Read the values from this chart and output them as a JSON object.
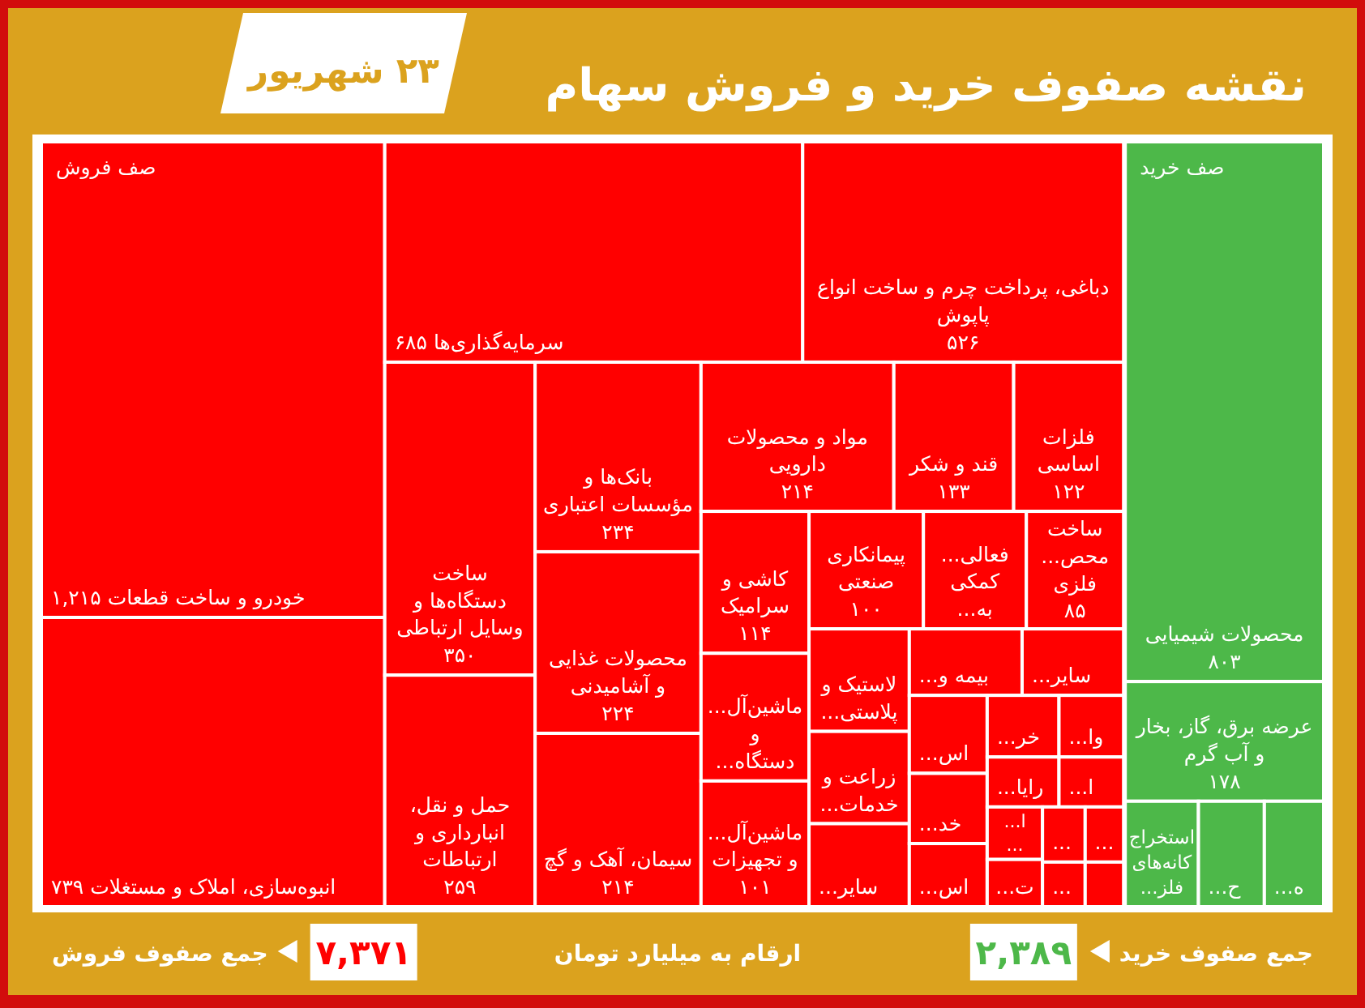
{
  "chart_data": [
    {
      "type": "other",
      "title": "نقشه صفوف خرید و فروش سهام",
      "subtitle": "۲۳ شهریور",
      "categories": [
        "خودرو و ساخت قطعات",
        "انبوه‌سازی، املاک و مستغلات",
        "سرمایه‌گذاری‌ها",
        "دباغی، پرداخت چرم و ساخت انواع پاپوش",
        "ساخت دستگاه‌ها و وسایل ارتباطی",
        "حمل و نقل، انبارداری و ارتباطات",
        "بانک‌ها و مؤسسات اعتباری",
        "محصولات غذایی و آشامیدنی",
        "سیمان، آهک و گچ",
        "مواد و محصولات دارویی",
        "قند و شکر",
        "فلزات اساسی",
        "کاشی و سرامیک",
        "ماشین‌آل... و دستگاه...",
        "ماشین‌آل... و تجهیزات",
        "پیمانکاری صنعتی",
        "فعالی... کمکی به...",
        "ساخت محص... فلزی",
        "لاستیک و پلاستی...",
        "زراعت و خدمات...",
        "سایر...",
        "بیمه و...",
        "سایر...",
        "اس...",
        "خد...",
        "اس...",
        "خر...",
        "وا...",
        "رایا...",
        "ا...",
        "ا... ...",
        "ت...",
        "...",
        "...",
        "...",
        null
      ],
      "series": [
        {
          "name": "صف فروش",
          "color": "#ff0000",
          "values": [
            1215,
            739,
            685,
            526,
            350,
            259,
            234,
            224,
            214,
            214,
            133,
            122,
            114,
            null,
            101,
            100,
            null,
            85,
            null,
            null,
            null,
            null,
            null,
            null,
            null,
            null,
            null,
            null,
            null,
            null,
            null,
            null,
            null,
            null,
            null,
            null
          ],
          "value_labels": [
            "۱,۲۱۵",
            "۷۳۹",
            "۶۸۵",
            "۵۲۶",
            "۳۵۰",
            "۲۵۹",
            "۲۳۴",
            "۲۲۴",
            "۲۱۴",
            "۲۱۴",
            "۱۳۳",
            "۱۲۲",
            "۱۱۴",
            null,
            "۱۰۱",
            "۱۰۰",
            null,
            "۸۵",
            null,
            null,
            null,
            null,
            null,
            null,
            null,
            null,
            null,
            null,
            null,
            null,
            null,
            null,
            null,
            null,
            null,
            null
          ]
        }
      ],
      "annotations": [
        "جمع صفوف فروش",
        "ارقام به میلیارد تومان"
      ],
      "totals": [
        "۷,۳۷۱"
      ]
    },
    {
      "type": "other",
      "categories": [
        "محصولات شیمیایی",
        "عرضه برق، گاز، بخار و آب گرم",
        "استخراج کانه‌های فلز...",
        "ح...",
        "ه..."
      ],
      "series": [
        {
          "name": "صف خرید",
          "color": "#4db849",
          "values": [
            803,
            178,
            null,
            null,
            null
          ],
          "value_labels": [
            "۸۰۳",
            "۱۷۸",
            null,
            null,
            null
          ]
        }
      ],
      "annotations": [
        "جمع صفوف خرید"
      ],
      "totals": [
        "۲,۳۸۹"
      ]
    }
  ]
}
